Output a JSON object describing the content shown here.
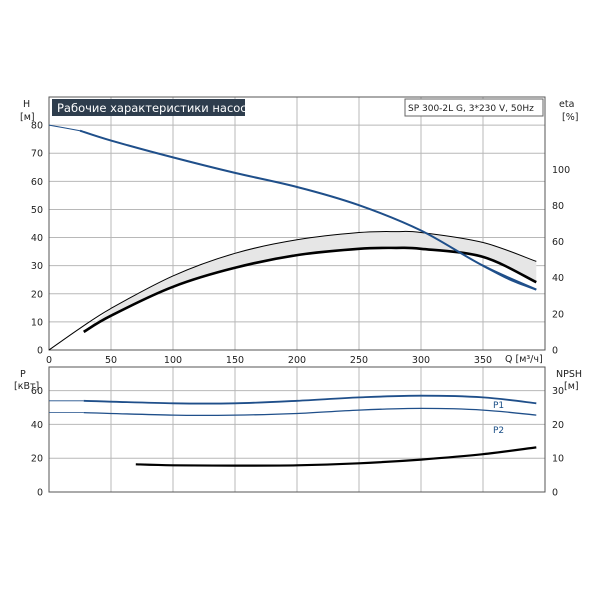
{
  "chart_data": [
    {
      "type": "line",
      "title": "Рабочие характеристики насоса",
      "subtitle": "SP 300-2L G, 3*230 V, 50Hz",
      "xlabel": "Q [м³/ч]",
      "xlim": [
        0,
        400
      ],
      "x_ticks": [
        0,
        50,
        100,
        150,
        200,
        250,
        300,
        350
      ],
      "ylabel_left": "H",
      "ylabel_left_unit": "[м]",
      "ylim_left": [
        0,
        90
      ],
      "y_ticks_left": [
        0,
        10,
        20,
        30,
        40,
        50,
        60,
        70,
        80
      ],
      "ylabel_right": "eta",
      "ylabel_right_unit": "[%]",
      "ylim_right": [
        0,
        140
      ],
      "y_ticks_right": [
        0,
        20,
        40,
        60,
        80,
        100
      ],
      "grid": true,
      "colors": {
        "head": "#1f4f8a",
        "efficiency": "#000000",
        "background": "#ffffff",
        "title_bg": "#2e3d4d"
      },
      "series": [
        {
          "key": "head",
          "axis": "left",
          "x": [
            0,
            25,
            50,
            100,
            150,
            200,
            250,
            300,
            350,
            393
          ],
          "values": [
            80,
            78,
            74.5,
            68.5,
            63,
            58,
            51.5,
            42.5,
            30,
            21.5
          ]
        },
        {
          "key": "head_ext",
          "axis": "left",
          "x": [
            350,
            372,
            393
          ],
          "values": [
            30,
            25,
            21.5
          ]
        },
        {
          "key": "eta_upper",
          "axis": "right",
          "x": [
            0,
            25,
            50,
            100,
            150,
            200,
            250,
            280,
            300,
            350,
            393
          ],
          "values": [
            0,
            12,
            23,
            41,
            53.5,
            61,
            65,
            65.5,
            65,
            59.5,
            49
          ]
        },
        {
          "key": "eta_lower",
          "axis": "right",
          "x": [
            28,
            50,
            100,
            150,
            200,
            250,
            280,
            300,
            350,
            393
          ],
          "values": [
            10,
            19,
            35,
            45.5,
            52.5,
            56,
            56.5,
            56,
            51.5,
            37.5
          ]
        }
      ]
    },
    {
      "type": "line",
      "xlim": [
        0,
        400
      ],
      "ylabel_left": "P",
      "ylabel_left_unit": "[кВт]",
      "ylim_left": [
        0,
        74
      ],
      "y_ticks_left": [
        0,
        20,
        40,
        60
      ],
      "ylabel_right": "NPSH",
      "ylabel_right_unit": "[м]",
      "ylim_right": [
        0,
        37
      ],
      "y_ticks_right": [
        0,
        10,
        20,
        30
      ],
      "grid": true,
      "series": [
        {
          "name": "P1",
          "axis": "left",
          "x": [
            0,
            28,
            100,
            150,
            200,
            250,
            300,
            350,
            393
          ],
          "values": [
            54,
            54,
            52.5,
            52.5,
            54,
            56,
            57,
            56,
            52.5
          ]
        },
        {
          "name": "P2",
          "axis": "left",
          "x": [
            0,
            28,
            100,
            150,
            200,
            250,
            300,
            350,
            393
          ],
          "values": [
            47,
            47,
            45.5,
            45.5,
            46.5,
            48.5,
            49.5,
            48.5,
            45.5
          ]
        },
        {
          "key": "npsh",
          "axis": "right",
          "x": [
            70,
            100,
            150,
            200,
            250,
            300,
            350,
            393
          ],
          "values": [
            8.2,
            7.9,
            7.8,
            7.9,
            8.5,
            9.6,
            11.2,
            13.2
          ]
        }
      ]
    }
  ]
}
